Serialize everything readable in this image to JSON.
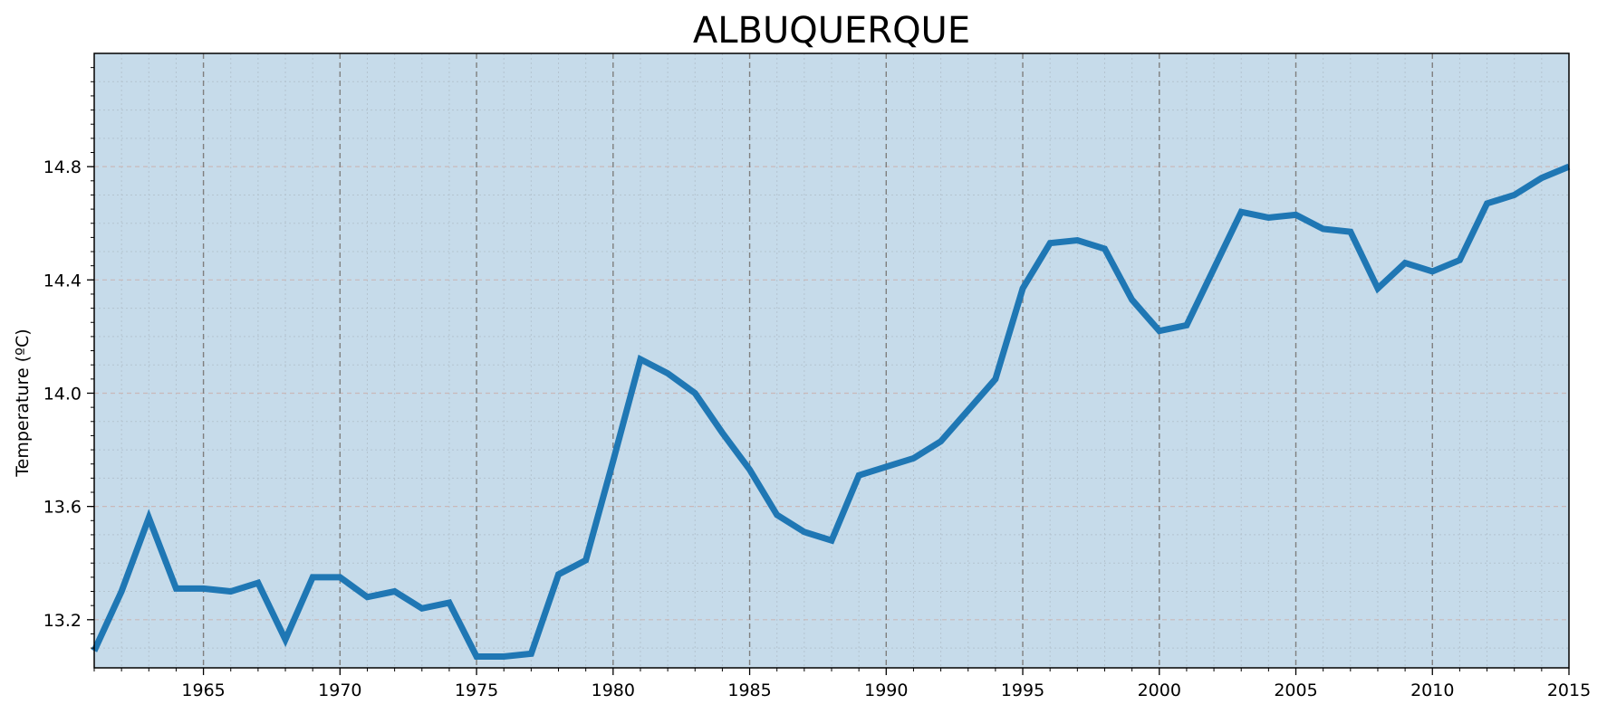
{
  "chart_data": {
    "type": "line",
    "title": "ALBUQUERQUE",
    "xlabel": "",
    "ylabel": "Temperature (ºC)",
    "xlim": [
      1961,
      2015
    ],
    "ylim": [
      13.03,
      15.2
    ],
    "x_ticks": [
      1965,
      1970,
      1975,
      1980,
      1985,
      1990,
      1995,
      2000,
      2005,
      2010,
      2015
    ],
    "y_ticks": [
      13.2,
      13.6,
      14.0,
      14.4,
      14.8
    ],
    "y_tick_labels": [
      "13.2",
      "13.6",
      "14.0",
      "14.4",
      "14.8"
    ],
    "grid": true,
    "background": "#c6dbea",
    "line_color": "#1f77b4",
    "x": [
      1961,
      1962,
      1963,
      1964,
      1965,
      1966,
      1967,
      1968,
      1969,
      1970,
      1971,
      1972,
      1973,
      1974,
      1975,
      1976,
      1977,
      1978,
      1979,
      1980,
      1981,
      1982,
      1983,
      1984,
      1985,
      1986,
      1987,
      1988,
      1989,
      1990,
      1991,
      1992,
      1993,
      1994,
      1995,
      1996,
      1997,
      1998,
      1999,
      2000,
      2001,
      2002,
      2003,
      2004,
      2005,
      2006,
      2007,
      2008,
      2009,
      2010,
      2011,
      2012,
      2013,
      2014,
      2015
    ],
    "series": [
      {
        "values": [
          13.09,
          13.3,
          13.56,
          13.31,
          13.31,
          13.3,
          13.33,
          13.13,
          13.35,
          13.35,
          13.28,
          13.3,
          13.24,
          13.26,
          13.07,
          13.07,
          13.08,
          13.36,
          13.41,
          13.76,
          14.12,
          14.07,
          14.0,
          13.86,
          13.73,
          13.57,
          13.51,
          13.48,
          13.71,
          13.74,
          13.77,
          13.83,
          13.94,
          14.05,
          14.37,
          14.53,
          14.54,
          14.51,
          14.33,
          14.22,
          14.24,
          14.44,
          14.64,
          14.62,
          14.63,
          14.58,
          14.57,
          14.37,
          14.46,
          14.43,
          14.47,
          14.67,
          14.7,
          14.76,
          14.8
        ]
      }
    ]
  }
}
